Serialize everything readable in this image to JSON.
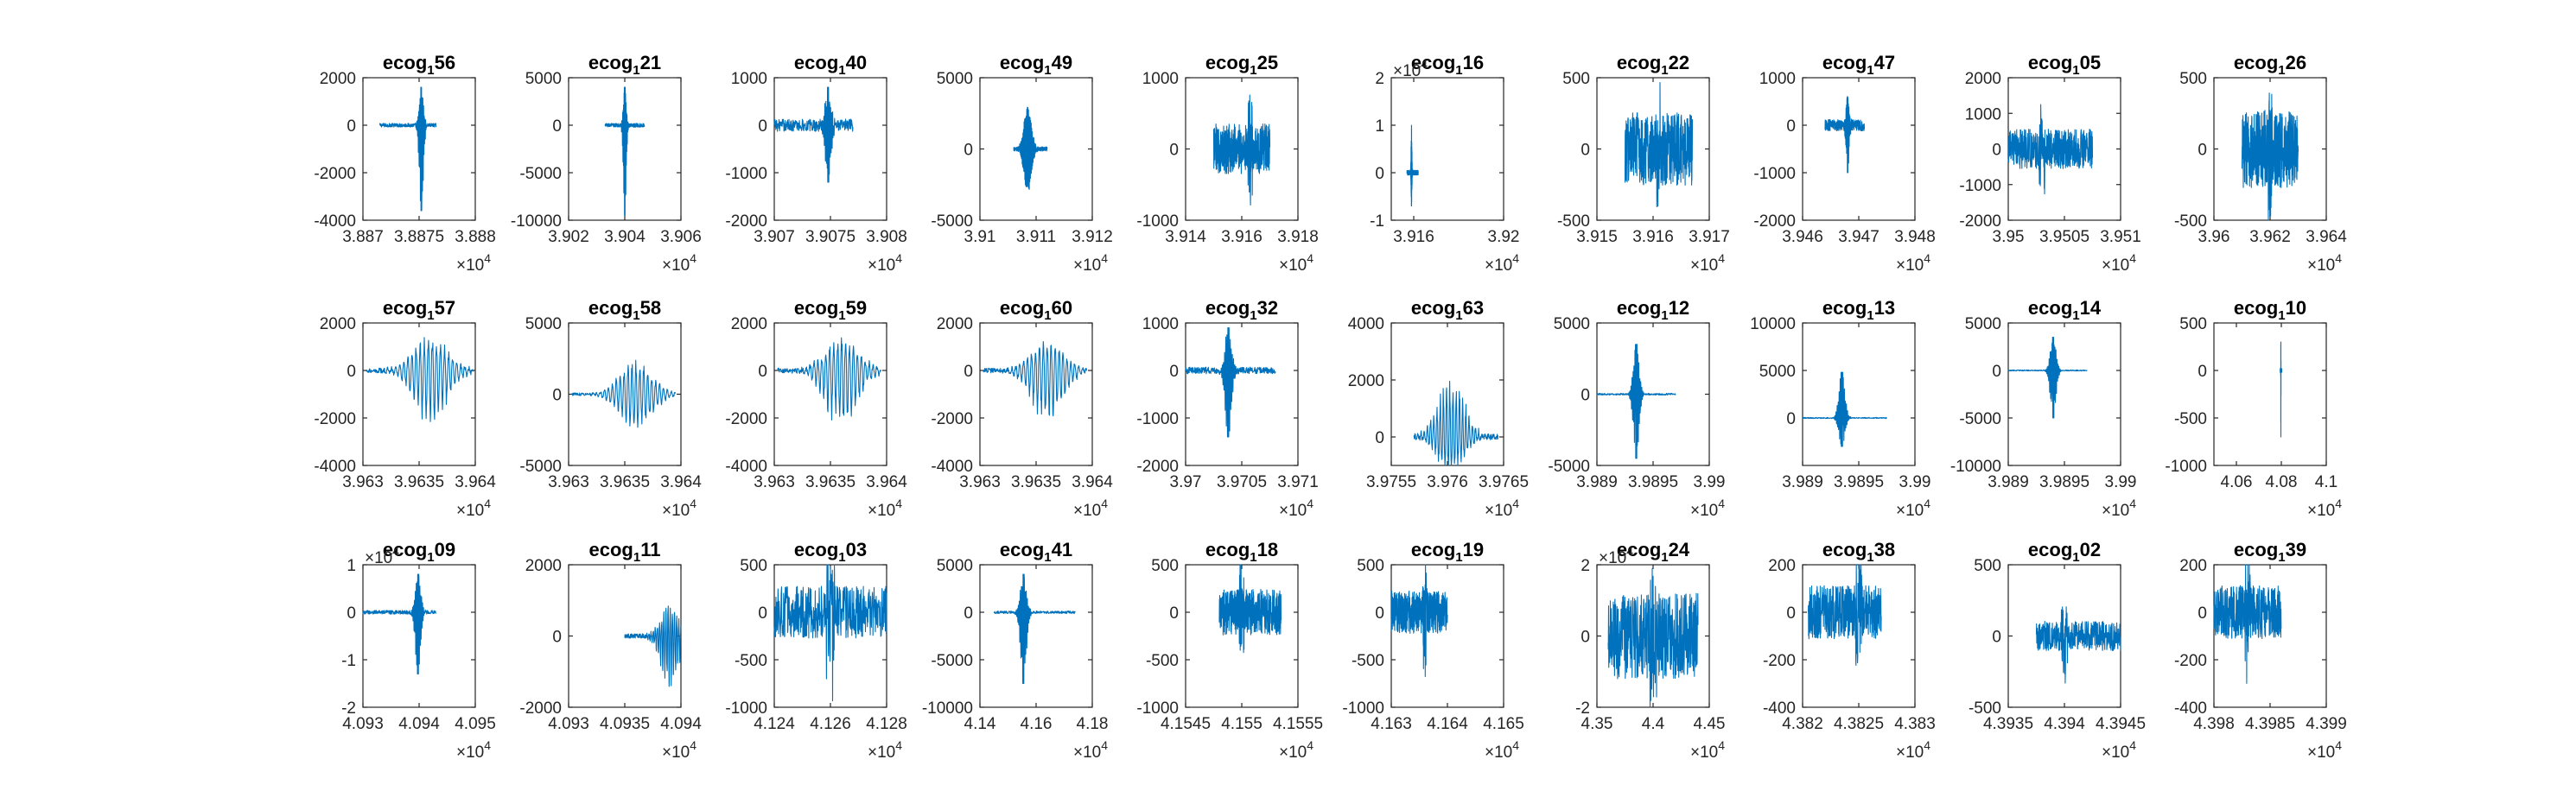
{
  "figure": {
    "line_color": "#0072BD",
    "axis_color": "#262626",
    "grid": false,
    "layout": "3 rows x 10 columns of small multiples"
  },
  "chart_data": [
    {
      "type": "line",
      "title_base": "ecog",
      "title_sub": "1",
      "title_suffix": "56",
      "xlim": [
        38870,
        38880
      ],
      "xticks": [
        "3.887",
        "3.8875",
        "3.888"
      ],
      "ylim": [
        -4000,
        2000
      ],
      "yticks": [
        "-4000",
        "-2000",
        "0",
        "2000"
      ],
      "x_exponent": "4",
      "y_exponent": "",
      "signal": {
        "x_range": [
          38871.5,
          38876.5
        ],
        "center": 38875.2,
        "amp": [
          1600,
          -3600
        ],
        "noise": 80,
        "style": "spike"
      }
    },
    {
      "type": "line",
      "title_base": "ecog",
      "title_sub": "1",
      "title_suffix": "21",
      "xlim": [
        39020,
        39060
      ],
      "xticks": [
        "3.902",
        "3.904",
        "3.906"
      ],
      "ylim": [
        -10000,
        5000
      ],
      "yticks": [
        "-10000",
        "-5000",
        "0",
        "5000"
      ],
      "x_exponent": "4",
      "y_exponent": "",
      "signal": {
        "x_range": [
          39033,
          39047
        ],
        "center": 39040,
        "amp": [
          4000,
          -9500
        ],
        "noise": 200,
        "style": "spike"
      }
    },
    {
      "type": "line",
      "title_base": "ecog",
      "title_sub": "1",
      "title_suffix": "40",
      "xlim": [
        39070,
        39080
      ],
      "xticks": [
        "3.907",
        "3.9075",
        "3.908"
      ],
      "ylim": [
        -2000,
        1000
      ],
      "yticks": [
        "-2000",
        "-1000",
        "0",
        "1000"
      ],
      "x_exponent": "4",
      "y_exponent": "",
      "signal": {
        "x_range": [
          39070,
          39077
        ],
        "center": 39074.8,
        "amp": [
          800,
          -1200
        ],
        "noise": 130,
        "style": "spike"
      }
    },
    {
      "type": "line",
      "title_base": "ecog",
      "title_sub": "1",
      "title_suffix": "49",
      "xlim": [
        39100,
        39120
      ],
      "xticks": [
        "3.91",
        "3.911",
        "3.912"
      ],
      "ylim": [
        -5000,
        5000
      ],
      "yticks": [
        "-5000",
        "0",
        "5000"
      ],
      "x_exponent": "4",
      "y_exponent": "",
      "signal": {
        "x_range": [
          39106,
          39112
        ],
        "center": 39108.5,
        "amp": [
          3000,
          -3000
        ],
        "noise": 150,
        "style": "burst"
      }
    },
    {
      "type": "line",
      "title_base": "ecog",
      "title_sub": "1",
      "title_suffix": "25",
      "xlim": [
        39140,
        39180
      ],
      "xticks": [
        "3.914",
        "3.916",
        "3.918"
      ],
      "ylim": [
        -1000,
        1000
      ],
      "yticks": [
        "-1000",
        "0",
        "1000"
      ],
      "x_exponent": "4",
      "y_exponent": "",
      "signal": {
        "x_range": [
          39150,
          39170
        ],
        "center": 39163,
        "amp": [
          700,
          -600
        ],
        "noise": 220,
        "style": "dense"
      }
    },
    {
      "type": "line",
      "title_base": "ecog",
      "title_sub": "1",
      "title_suffix": "16",
      "xlim": [
        39150,
        39200
      ],
      "xticks": [
        "3.916",
        "3.92"
      ],
      "ylim": [
        -1,
        2
      ],
      "yticks": [
        "-1",
        "0",
        "1",
        "2"
      ],
      "x_exponent": "4",
      "y_exponent": "4",
      "signal": {
        "x_range": [
          39157,
          39162
        ],
        "center": 39159,
        "amp": [
          1.0,
          -0.7
        ],
        "noise": 0.05,
        "style": "spike"
      }
    },
    {
      "type": "line",
      "title_base": "ecog",
      "title_sub": "1",
      "title_suffix": "22",
      "xlim": [
        39150,
        39170
      ],
      "xticks": [
        "3.915",
        "3.916",
        "3.917"
      ],
      "ylim": [
        -500,
        500
      ],
      "yticks": [
        "-500",
        "0",
        "500"
      ],
      "x_exponent": "4",
      "y_exponent": "",
      "signal": {
        "x_range": [
          39155,
          39167
        ],
        "center": 39161,
        "amp": [
          300,
          -300
        ],
        "noise": 160,
        "style": "dense"
      }
    },
    {
      "type": "line",
      "title_base": "ecog",
      "title_sub": "1",
      "title_suffix": "47",
      "xlim": [
        39460,
        39480
      ],
      "xticks": [
        "3.946",
        "3.947",
        "3.948"
      ],
      "ylim": [
        -2000,
        1000
      ],
      "yticks": [
        "-2000",
        "-1000",
        "0",
        "1000"
      ],
      "x_exponent": "4",
      "y_exponent": "",
      "signal": {
        "x_range": [
          39464,
          39471
        ],
        "center": 39468,
        "amp": [
          600,
          -1000
        ],
        "noise": 120,
        "style": "spike"
      }
    },
    {
      "type": "line",
      "title_base": "ecog",
      "title_sub": "1",
      "title_suffix": "05",
      "xlim": [
        39500,
        39510
      ],
      "xticks": [
        "3.95",
        "3.9505",
        "3.951"
      ],
      "ylim": [
        -2000,
        2000
      ],
      "yticks": [
        "-2000",
        "-1000",
        "0",
        "1000",
        "2000"
      ],
      "x_exponent": "4",
      "y_exponent": "",
      "signal": {
        "x_range": [
          39500,
          39507.5
        ],
        "center": 39503,
        "amp": [
          800,
          -800
        ],
        "noise": 350,
        "style": "dense"
      }
    },
    {
      "type": "line",
      "title_base": "ecog",
      "title_sub": "1",
      "title_suffix": "26",
      "xlim": [
        39600,
        39640
      ],
      "xticks": [
        "3.96",
        "3.962",
        "3.964"
      ],
      "ylim": [
        -500,
        500
      ],
      "yticks": [
        "-500",
        "0",
        "500"
      ],
      "x_exponent": "4",
      "y_exponent": "",
      "signal": {
        "x_range": [
          39610,
          39630
        ],
        "center": 39620,
        "amp": [
          300,
          -300
        ],
        "noise": 170,
        "style": "dense"
      }
    },
    {
      "type": "line",
      "title_base": "ecog",
      "title_sub": "1",
      "title_suffix": "57",
      "xlim": [
        39630,
        39640
      ],
      "xticks": [
        "3.963",
        "3.9635",
        "3.964"
      ],
      "ylim": [
        -4000,
        2000
      ],
      "yticks": [
        "-4000",
        "-2000",
        "0",
        "2000"
      ],
      "x_exponent": "4",
      "y_exponent": "",
      "signal": {
        "x_range": [
          39630.3,
          39639.8
        ],
        "center": 39636,
        "amp": [
          1500,
          -2300
        ],
        "noise": 100,
        "style": "oscillation"
      }
    },
    {
      "type": "line",
      "title_base": "ecog",
      "title_sub": "1",
      "title_suffix": "58",
      "xlim": [
        39630,
        39640
      ],
      "xticks": [
        "3.963",
        "3.9635",
        "3.964"
      ],
      "ylim": [
        -5000,
        5000
      ],
      "yticks": [
        "-5000",
        "0",
        "5000"
      ],
      "x_exponent": "4",
      "y_exponent": "",
      "signal": {
        "x_range": [
          39630.3,
          39639.5
        ],
        "center": 39636,
        "amp": [
          2500,
          -2500
        ],
        "noise": 100,
        "style": "oscillation"
      }
    },
    {
      "type": "line",
      "title_base": "ecog",
      "title_sub": "1",
      "title_suffix": "59",
      "xlim": [
        39630,
        39640
      ],
      "xticks": [
        "3.963",
        "3.9635",
        "3.964"
      ],
      "ylim": [
        -4000,
        2000
      ],
      "yticks": [
        "-4000",
        "-2000",
        "0",
        "2000"
      ],
      "x_exponent": "4",
      "y_exponent": "",
      "signal": {
        "x_range": [
          39630.3,
          39639.5
        ],
        "center": 39636,
        "amp": [
          1500,
          -2500
        ],
        "noise": 100,
        "style": "oscillation"
      }
    },
    {
      "type": "line",
      "title_base": "ecog",
      "title_sub": "1",
      "title_suffix": "60",
      "xlim": [
        39630,
        39640
      ],
      "xticks": [
        "3.963",
        "3.9635",
        "3.964"
      ],
      "ylim": [
        -4000,
        2000
      ],
      "yticks": [
        "-4000",
        "-2000",
        "0",
        "2000"
      ],
      "x_exponent": "4",
      "y_exponent": "",
      "signal": {
        "x_range": [
          39630.3,
          39639.5
        ],
        "center": 39636,
        "amp": [
          1300,
          -2300
        ],
        "noise": 100,
        "style": "oscillation"
      }
    },
    {
      "type": "line",
      "title_base": "ecog",
      "title_sub": "1",
      "title_suffix": "32",
      "xlim": [
        39700,
        39710
      ],
      "xticks": [
        "3.97",
        "3.9705",
        "3.971"
      ],
      "ylim": [
        -2000,
        1000
      ],
      "yticks": [
        "-2000",
        "-1000",
        "0",
        "1000"
      ],
      "x_exponent": "4",
      "y_exponent": "",
      "signal": {
        "x_range": [
          39700,
          39708
        ],
        "center": 39703.8,
        "amp": [
          900,
          -1400
        ],
        "noise": 70,
        "style": "spike"
      }
    },
    {
      "type": "line",
      "title_base": "ecog",
      "title_sub": "1",
      "title_suffix": "63",
      "xlim": [
        39755,
        39765
      ],
      "xticks": [
        "3.9755",
        "3.976",
        "3.9765"
      ],
      "ylim": [
        -1000,
        4000
      ],
      "yticks": [
        "0",
        "2000",
        "4000"
      ],
      "x_exponent": "4",
      "y_exponent": "",
      "signal": {
        "x_range": [
          39757,
          39764.5
        ],
        "center": 39760.3,
        "amp": [
          2200,
          -1300
        ],
        "noise": 100,
        "style": "oscillation"
      }
    },
    {
      "type": "line",
      "title_base": "ecog",
      "title_sub": "1",
      "title_suffix": "12",
      "xlim": [
        39890,
        39900
      ],
      "xticks": [
        "3.989",
        "3.9895",
        "3.99"
      ],
      "ylim": [
        -5000,
        5000
      ],
      "yticks": [
        "-5000",
        "0",
        "5000"
      ],
      "x_exponent": "4",
      "y_exponent": "",
      "signal": {
        "x_range": [
          39890,
          39897
        ],
        "center": 39893.5,
        "amp": [
          3500,
          -4500
        ],
        "noise": 60,
        "style": "spike"
      }
    },
    {
      "type": "line",
      "title_base": "ecog",
      "title_sub": "1",
      "title_suffix": "13",
      "xlim": [
        39890,
        39900
      ],
      "xticks": [
        "3.989",
        "3.9895",
        "3.99"
      ],
      "ylim": [
        -5000,
        10000
      ],
      "yticks": [
        "0",
        "5000",
        "10000"
      ],
      "x_exponent": "4",
      "y_exponent": "",
      "signal": {
        "x_range": [
          39890,
          39897.5
        ],
        "center": 39893.5,
        "amp": [
          4800,
          -3000
        ],
        "noise": 60,
        "style": "spike"
      }
    },
    {
      "type": "line",
      "title_base": "ecog",
      "title_sub": "1",
      "title_suffix": "14",
      "xlim": [
        39890,
        39900
      ],
      "xticks": [
        "3.989",
        "3.9895",
        "3.99"
      ],
      "ylim": [
        -10000,
        5000
      ],
      "yticks": [
        "-10000",
        "-5000",
        "0",
        "5000"
      ],
      "x_exponent": "4",
      "y_exponent": "",
      "signal": {
        "x_range": [
          39890,
          39897
        ],
        "center": 39894,
        "amp": [
          3500,
          -5000
        ],
        "noise": 60,
        "style": "spike"
      }
    },
    {
      "type": "line",
      "title_base": "ecog",
      "title_sub": "1",
      "title_suffix": "10",
      "xlim": [
        40500,
        41000
      ],
      "xticks": [
        "4.06",
        "4.08",
        "4.1"
      ],
      "ylim": [
        -1000,
        500
      ],
      "yticks": [
        "-1000",
        "-500",
        "0",
        "500"
      ],
      "x_exponent": "4",
      "y_exponent": "",
      "signal": {
        "x_range": [
          40795,
          40802
        ],
        "center": 40798,
        "amp": [
          300,
          -700
        ],
        "noise": 20,
        "style": "spike"
      }
    },
    {
      "type": "line",
      "title_base": "ecog",
      "title_sub": "1",
      "title_suffix": "09",
      "xlim": [
        40930,
        40950
      ],
      "xticks": [
        "4.093",
        "4.094",
        "4.095"
      ],
      "ylim": [
        -2,
        1
      ],
      "yticks": [
        "-2",
        "-1",
        "0",
        "1"
      ],
      "x_exponent": "4",
      "y_exponent": "4",
      "signal": {
        "x_range": [
          40930,
          40943
        ],
        "center": 40939.8,
        "amp": [
          0.8,
          -1.3
        ],
        "noise": 0.04,
        "style": "spike"
      }
    },
    {
      "type": "line",
      "title_base": "ecog",
      "title_sub": "1",
      "title_suffix": "11",
      "xlim": [
        40930,
        40940
      ],
      "xticks": [
        "4.093",
        "4.0935",
        "4.094"
      ],
      "ylim": [
        -2000,
        2000
      ],
      "yticks": [
        "-2000",
        "0",
        "2000"
      ],
      "x_exponent": "4",
      "y_exponent": "",
      "signal": {
        "x_range": [
          40935,
          40940
        ],
        "center": 40939,
        "amp": [
          900,
          -1500
        ],
        "noise": 60,
        "style": "oscillation"
      }
    },
    {
      "type": "line",
      "title_base": "ecog",
      "title_sub": "1",
      "title_suffix": "03",
      "xlim": [
        41240,
        41280
      ],
      "xticks": [
        "4.124",
        "4.126",
        "4.128"
      ],
      "ylim": [
        -1000,
        500
      ],
      "yticks": [
        "-1000",
        "-500",
        "0",
        "500"
      ],
      "x_exponent": "4",
      "y_exponent": "",
      "signal": {
        "x_range": [
          41240,
          41280
        ],
        "center": 41260,
        "amp": [
          500,
          -800
        ],
        "noise": 170,
        "style": "dense"
      }
    },
    {
      "type": "line",
      "title_base": "ecog",
      "title_sub": "1",
      "title_suffix": "41",
      "xlim": [
        41400,
        41800
      ],
      "xticks": [
        "4.14",
        "4.16",
        "4.18"
      ],
      "ylim": [
        -10000,
        5000
      ],
      "yticks": [
        "-10000",
        "-5000",
        "0",
        "5000"
      ],
      "x_exponent": "4",
      "y_exponent": "",
      "signal": {
        "x_range": [
          41450,
          41740
        ],
        "center": 41555,
        "amp": [
          4000,
          -7500
        ],
        "noise": 130,
        "style": "spike"
      }
    },
    {
      "type": "line",
      "title_base": "ecog",
      "title_sub": "1",
      "title_suffix": "18",
      "xlim": [
        41545,
        41555
      ],
      "xticks": [
        "4.1545",
        "4.155",
        "4.1555"
      ],
      "ylim": [
        -1000,
        500
      ],
      "yticks": [
        "-1000",
        "-500",
        "0",
        "500"
      ],
      "x_exponent": "4",
      "y_exponent": "",
      "signal": {
        "x_range": [
          41548,
          41553.5
        ],
        "center": 41550,
        "amp": [
          400,
          -500
        ],
        "noise": 150,
        "style": "dense"
      }
    },
    {
      "type": "line",
      "title_base": "ecog",
      "title_sub": "1",
      "title_suffix": "19",
      "xlim": [
        41630,
        41650
      ],
      "xticks": [
        "4.163",
        "4.164",
        "4.165"
      ],
      "ylim": [
        -1000,
        500
      ],
      "yticks": [
        "-1000",
        "-500",
        "0",
        "500"
      ],
      "x_exponent": "4",
      "y_exponent": "",
      "signal": {
        "x_range": [
          41630,
          41640
        ],
        "center": 41636,
        "amp": [
          300,
          -600
        ],
        "noise": 140,
        "style": "dense"
      }
    },
    {
      "type": "line",
      "title_base": "ecog",
      "title_sub": "1",
      "title_suffix": "24",
      "xlim": [
        43500,
        44500
      ],
      "xticks": [
        "4.35",
        "4.4",
        "4.45"
      ],
      "ylim": [
        -2,
        2
      ],
      "yticks": [
        "-2",
        "0",
        "2"
      ],
      "x_exponent": "4",
      "y_exponent": "4",
      "signal": {
        "x_range": [
          43600,
          44400
        ],
        "center": 44000,
        "amp": [
          1.5,
          -1.5
        ],
        "noise": 0.75,
        "style": "dense"
      }
    },
    {
      "type": "line",
      "title_base": "ecog",
      "title_sub": "1",
      "title_suffix": "38",
      "xlim": [
        43820,
        43830
      ],
      "xticks": [
        "4.382",
        "4.3825",
        "4.383"
      ],
      "ylim": [
        -400,
        200
      ],
      "yticks": [
        "-400",
        "-200",
        "0",
        "200"
      ],
      "x_exponent": "4",
      "y_exponent": "",
      "signal": {
        "x_range": [
          43820.5,
          43827
        ],
        "center": 43825,
        "amp": [
          180,
          -300
        ],
        "noise": 70,
        "style": "dense"
      }
    },
    {
      "type": "line",
      "title_base": "ecog",
      "title_sub": "1",
      "title_suffix": "02",
      "xlim": [
        43935,
        43945
      ],
      "xticks": [
        "4.3935",
        "4.394",
        "4.3945"
      ],
      "ylim": [
        -500,
        500
      ],
      "yticks": [
        "-500",
        "0",
        "500"
      ],
      "x_exponent": "4",
      "y_exponent": "",
      "signal": {
        "x_range": [
          43937.5,
          43945
        ],
        "center": 43940,
        "amp": [
          150,
          -250
        ],
        "noise": 65,
        "style": "dense"
      }
    },
    {
      "type": "line",
      "title_base": "ecog",
      "title_sub": "1",
      "title_suffix": "39",
      "xlim": [
        43980,
        43990
      ],
      "xticks": [
        "4.398",
        "4.3985",
        "4.399"
      ],
      "ylim": [
        -400,
        200
      ],
      "yticks": [
        "-400",
        "-200",
        "0",
        "200"
      ],
      "x_exponent": "4",
      "y_exponent": "",
      "signal": {
        "x_range": [
          43980,
          43986
        ],
        "center": 43983,
        "amp": [
          170,
          -280
        ],
        "noise": 70,
        "style": "dense"
      }
    }
  ]
}
